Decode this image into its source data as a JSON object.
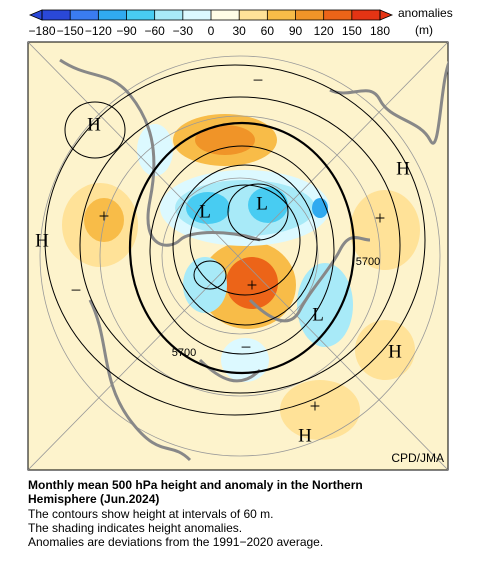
{
  "colorbar": {
    "ticks": [
      {
        "value": -180,
        "label": "−180"
      },
      {
        "value": -150,
        "label": "−150"
      },
      {
        "value": -120,
        "label": "−120"
      },
      {
        "value": -90,
        "label": "−90"
      },
      {
        "value": -60,
        "label": "−60"
      },
      {
        "value": -30,
        "label": "−30"
      },
      0,
      30,
      60,
      90,
      120,
      150,
      180
    ],
    "colors": [
      "#2a48d8",
      "#3a7cf0",
      "#30aaf0",
      "#48ccf2",
      "#a8eaf8",
      "#dcf9ff",
      "#fffde6",
      "#ffe298",
      "#f8bc48",
      "#f09428",
      "#ec6418",
      "#e43414"
    ],
    "label": "anomalies",
    "unit": "(m)"
  },
  "map": {
    "labels": [
      "H",
      "H",
      "H",
      "H",
      "H",
      "L",
      "L",
      "L",
      "+",
      "+",
      "+",
      "+",
      "−",
      "−",
      "−",
      "5700",
      "5700",
      "CPD/JMA"
    ]
  },
  "caption": {
    "title": [
      "Monthly mean 500 hPa height and anomaly in the Northern",
      "Hemisphere (Jun.2024)"
    ],
    "lines": [
      "The contours show height at intervals of 60 m.",
      "The shading indicates height anomalies.",
      "Anomalies are deviations from the 1991−2020 average."
    ]
  }
}
